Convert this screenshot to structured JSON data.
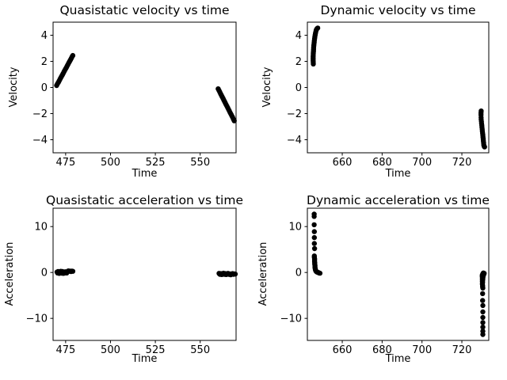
{
  "figure": {
    "background": "#ffffff",
    "axis_color": "#000000",
    "point_color": "#000000"
  },
  "chart_data": [
    {
      "id": "quasistatic-velocity",
      "type": "scatter",
      "title": "Quasistatic velocity vs time",
      "xlabel": "Time",
      "ylabel": "Velocity",
      "xlim": [
        468,
        570
      ],
      "ylim": [
        -5,
        5
      ],
      "xticks": [
        475,
        500,
        525,
        550
      ],
      "yticks": [
        -4,
        -2,
        0,
        2,
        4
      ],
      "grid": false,
      "legend": null,
      "marker_size": 3.2,
      "points": [
        [
          470,
          0.15
        ],
        [
          470.45,
          0.27
        ],
        [
          470.9,
          0.38
        ],
        [
          471.35,
          0.5
        ],
        [
          471.8,
          0.61
        ],
        [
          472.25,
          0.73
        ],
        [
          472.7,
          0.84
        ],
        [
          473.15,
          0.96
        ],
        [
          473.6,
          1.07
        ],
        [
          474.05,
          1.19
        ],
        [
          474.5,
          1.3
        ],
        [
          474.95,
          1.42
        ],
        [
          475.4,
          1.53
        ],
        [
          475.85,
          1.65
        ],
        [
          476.3,
          1.76
        ],
        [
          476.75,
          1.88
        ],
        [
          477.2,
          1.99
        ],
        [
          477.65,
          2.11
        ],
        [
          478.1,
          2.22
        ],
        [
          478.55,
          2.34
        ],
        [
          479,
          2.45
        ],
        [
          560,
          -0.1
        ],
        [
          560.45,
          -0.22
        ],
        [
          560.9,
          -0.34
        ],
        [
          561.35,
          -0.47
        ],
        [
          561.8,
          -0.59
        ],
        [
          562.25,
          -0.71
        ],
        [
          562.7,
          -0.83
        ],
        [
          563.15,
          -0.96
        ],
        [
          563.6,
          -1.08
        ],
        [
          564.05,
          -1.2
        ],
        [
          564.5,
          -1.32
        ],
        [
          564.95,
          -1.45
        ],
        [
          565.4,
          -1.57
        ],
        [
          565.85,
          -1.69
        ],
        [
          566.3,
          -1.81
        ],
        [
          566.75,
          -1.94
        ],
        [
          567.2,
          -2.06
        ],
        [
          567.65,
          -2.18
        ],
        [
          568.1,
          -2.3
        ],
        [
          568.55,
          -2.43
        ],
        [
          569,
          -2.55
        ]
      ]
    },
    {
      "id": "dynamic-velocity",
      "type": "scatter",
      "title": "Dynamic velocity vs time",
      "xlabel": "Time",
      "ylabel": "Velocity",
      "xlim": [
        642.5,
        733.5
      ],
      "ylim": [
        -5,
        5
      ],
      "xticks": [
        660,
        680,
        700,
        720
      ],
      "yticks": [
        -4,
        -2,
        0,
        2,
        4
      ],
      "grid": false,
      "legend": null,
      "marker_size": 3.2,
      "points": [
        [
          645.5,
          1.8
        ],
        [
          645.45,
          1.94
        ],
        [
          645.4,
          2.08
        ],
        [
          645.4,
          2.21
        ],
        [
          645.4,
          2.35
        ],
        [
          645.45,
          2.49
        ],
        [
          645.5,
          2.63
        ],
        [
          645.55,
          2.76
        ],
        [
          645.6,
          2.9
        ],
        [
          645.65,
          3.04
        ],
        [
          645.7,
          3.18
        ],
        [
          645.8,
          3.31
        ],
        [
          645.9,
          3.45
        ],
        [
          646,
          3.59
        ],
        [
          646.1,
          3.73
        ],
        [
          646.25,
          3.86
        ],
        [
          646.4,
          4
        ],
        [
          646.55,
          4.14
        ],
        [
          646.75,
          4.28
        ],
        [
          647,
          4.41
        ],
        [
          647.3,
          4.5
        ],
        [
          647.7,
          4.55
        ],
        [
          729.7,
          -1.8
        ],
        [
          729.6,
          -1.95
        ],
        [
          729.6,
          -2.1
        ],
        [
          729.65,
          -2.3
        ],
        [
          729.7,
          -2.45
        ],
        [
          729.8,
          -2.6
        ],
        [
          729.9,
          -2.75
        ],
        [
          730,
          -2.9
        ],
        [
          730.1,
          -3.05
        ],
        [
          730.2,
          -3.2
        ],
        [
          730.3,
          -3.35
        ],
        [
          730.4,
          -3.5
        ],
        [
          730.5,
          -3.65
        ],
        [
          730.6,
          -3.8
        ],
        [
          730.7,
          -3.95
        ],
        [
          730.8,
          -4.1
        ],
        [
          730.9,
          -4.25
        ],
        [
          731,
          -4.4
        ],
        [
          731.2,
          -4.5
        ],
        [
          731.4,
          -4.55
        ]
      ]
    },
    {
      "id": "quasistatic-acceleration",
      "type": "scatter",
      "title": "Quasistatic acceleration vs time",
      "xlabel": "Time",
      "ylabel": "Acceleration",
      "xlim": [
        468,
        570
      ],
      "ylim": [
        -14.8,
        14.0
      ],
      "xticks": [
        475,
        500,
        525,
        550
      ],
      "yticks": [
        -10,
        0,
        10
      ],
      "grid": false,
      "legend": null,
      "marker_size": 3.2,
      "points": [
        [
          470.2,
          0.1
        ],
        [
          470.5,
          -0.1
        ],
        [
          470.8,
          0.2
        ],
        [
          471.1,
          0
        ],
        [
          471.4,
          -0.2
        ],
        [
          471.7,
          0.15
        ],
        [
          472,
          -0.05
        ],
        [
          472.3,
          0.25
        ],
        [
          472.6,
          0.05
        ],
        [
          472.9,
          -0.15
        ],
        [
          473.2,
          0.2
        ],
        [
          473.5,
          0
        ],
        [
          473.8,
          -0.2
        ],
        [
          474.1,
          0.1
        ],
        [
          474.4,
          -0.1
        ],
        [
          474.8,
          0.15
        ],
        [
          475.2,
          0
        ],
        [
          475.6,
          -0.1
        ],
        [
          476,
          0.2
        ],
        [
          476.5,
          0.35
        ],
        [
          477,
          0.25
        ],
        [
          477.5,
          0.3
        ],
        [
          478,
          0.2
        ],
        [
          478.5,
          0.3
        ],
        [
          479,
          0.25
        ],
        [
          560.5,
          -0.2
        ],
        [
          561,
          -0.4
        ],
        [
          561.5,
          -0.25
        ],
        [
          562,
          -0.45
        ],
        [
          562.5,
          -0.3
        ],
        [
          563,
          -0.15
        ],
        [
          563.5,
          -0.4
        ],
        [
          564,
          -0.25
        ],
        [
          564.5,
          -0.45
        ],
        [
          565,
          -0.3
        ],
        [
          565.5,
          -0.2
        ],
        [
          566,
          -0.4
        ],
        [
          566.5,
          -0.3
        ],
        [
          567,
          -0.5
        ],
        [
          567.5,
          -0.35
        ],
        [
          568,
          -0.25
        ],
        [
          568.5,
          -0.4
        ],
        [
          569,
          -0.3
        ],
        [
          569.5,
          -0.35
        ]
      ]
    },
    {
      "id": "dynamic-acceleration",
      "type": "scatter",
      "title": "Dynamic acceleration vs time",
      "xlabel": "Time",
      "ylabel": "Acceleration",
      "xlim": [
        642.5,
        733.5
      ],
      "ylim": [
        -14.8,
        14.0
      ],
      "xticks": [
        660,
        680,
        700,
        720
      ],
      "yticks": [
        -10,
        0,
        10
      ],
      "grid": false,
      "legend": null,
      "marker_size": 3.2,
      "points": [
        [
          645.9,
          12.7
        ],
        [
          645.9,
          12.2
        ],
        [
          645.9,
          10.4
        ],
        [
          646,
          8.9
        ],
        [
          646,
          7.6
        ],
        [
          646,
          6.3
        ],
        [
          646.1,
          5.2
        ],
        [
          646,
          3.6
        ],
        [
          646,
          3.3
        ],
        [
          646.1,
          3
        ],
        [
          646.1,
          2.7
        ],
        [
          646.1,
          2.4
        ],
        [
          646.2,
          2.1
        ],
        [
          646.2,
          1.8
        ],
        [
          646.3,
          1.5
        ],
        [
          646.3,
          1.2
        ],
        [
          646.4,
          0.9
        ],
        [
          646.5,
          0.7
        ],
        [
          646.6,
          0.5
        ],
        [
          646.8,
          0.3
        ],
        [
          647,
          0.2
        ],
        [
          647.3,
          0.1
        ],
        [
          647.6,
          0.05
        ],
        [
          648,
          0
        ],
        [
          648.4,
          -0.1
        ],
        [
          648.8,
          -0.15
        ],
        [
          730.8,
          -0.1
        ],
        [
          731.2,
          -0.2
        ],
        [
          730.5,
          -0.3
        ],
        [
          731,
          -0.4
        ],
        [
          730.3,
          -0.5
        ],
        [
          730.8,
          -0.6
        ],
        [
          730.2,
          -0.8
        ],
        [
          730.6,
          -1
        ],
        [
          730.3,
          -1.2
        ],
        [
          730.5,
          -1.4
        ],
        [
          730.3,
          -1.6
        ],
        [
          730.4,
          -1.8
        ],
        [
          730.3,
          -2
        ],
        [
          730.4,
          -2.2
        ],
        [
          730.3,
          -2.5
        ],
        [
          730.4,
          -2.8
        ],
        [
          730.4,
          -3.1
        ],
        [
          730.5,
          -3.4
        ],
        [
          730.4,
          -4.6
        ],
        [
          730.4,
          -6.1
        ],
        [
          730.5,
          -7.2
        ],
        [
          730.5,
          -8.6
        ],
        [
          730.5,
          -9.8
        ],
        [
          730.5,
          -10.9
        ],
        [
          730.5,
          -11.9
        ],
        [
          730.5,
          -12.8
        ],
        [
          730.5,
          -13.5
        ]
      ]
    }
  ]
}
